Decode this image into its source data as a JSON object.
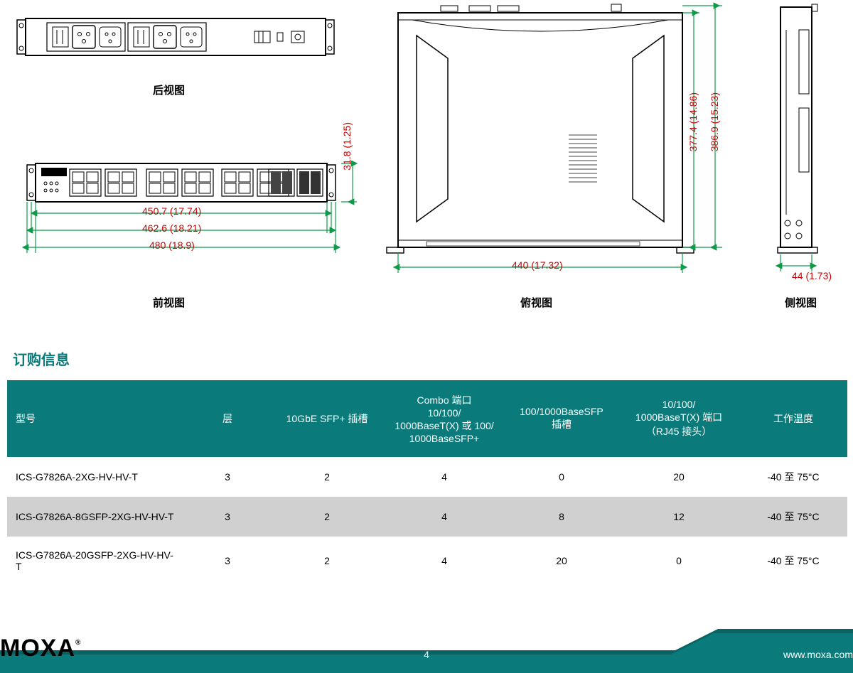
{
  "colors": {
    "teal": "#0b7a7a",
    "teal_dark": "#096363",
    "dim_red": "#cc0000",
    "dim_green": "#0f9a4a",
    "line_black": "#000000",
    "row_alt": "#d0d0d0",
    "row_white": "#ffffff",
    "white": "#ffffff"
  },
  "views": {
    "rear_label": "后视图",
    "front_label": "前视图",
    "top_label": "俯视图",
    "side_label": "侧视图"
  },
  "dimensions": {
    "d_31_8": "31.8 (1.25)",
    "d_450_7": "450.7 (17.74)",
    "d_462_6": "462.6 (18.21)",
    "d_480": "480 (18.9)",
    "d_440": "440 (17.32)",
    "d_377_4": "377.4 (14.86)",
    "d_386_9": "386.9 (15.23)",
    "d_44": "44 (1.73)"
  },
  "order_section_title": "订购信息",
  "table": {
    "header_bg": "#0b7a7a",
    "columns": [
      "型号",
      "层",
      "10GbE SFP+ 插槽",
      "Combo 端口\n10/100/\n1000BaseT(X) 或 100/\n1000BaseSFP+",
      "100/1000BaseSFP\n插槽",
      "10/100/\n1000BaseT(X) 端口\n（RJ45 接头）",
      "工作温度"
    ],
    "col_widths": [
      "250px",
      "120px",
      "160px",
      "170px",
      "160px",
      "170px",
      "152px"
    ],
    "rows": [
      {
        "bg": "#ffffff",
        "cells": [
          "ICS-G7826A-2XG-HV-HV-T",
          "3",
          "2",
          "4",
          "0",
          "20",
          "-40 至 75°C"
        ]
      },
      {
        "bg": "#d0d0d0",
        "cells": [
          "ICS-G7826A-8GSFP-2XG-HV-HV-T",
          "3",
          "2",
          "4",
          "8",
          "12",
          "-40 至 75°C"
        ]
      },
      {
        "bg": "#ffffff",
        "cells": [
          "ICS-G7826A-20GSFP-2XG-HV-HV-T",
          "3",
          "2",
          "4",
          "20",
          "0",
          "-40 至 75°C"
        ]
      }
    ]
  },
  "footer": {
    "logo": "MOXA",
    "page": "4",
    "url": "www.moxa.com"
  }
}
